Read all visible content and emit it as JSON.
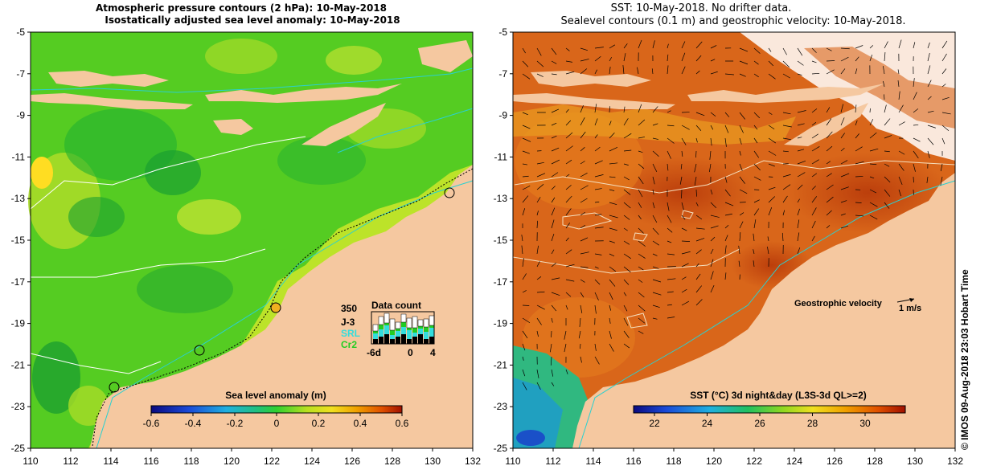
{
  "left_panel": {
    "title_line1": "Atmospheric pressure contours (2 hPa): 10-May-2018",
    "title_line2": "Isostatically adjusted sea level anomaly: 10-May-2018",
    "colorbar_title": "Sea level anomaly (m)",
    "colorbar_ticks": [
      "-0.6",
      "-0.4",
      "-0.2",
      "0",
      "0.2",
      "0.4",
      "0.6"
    ],
    "colors": {
      "ocean": "#55cc22",
      "land": "#f5c8a0",
      "contour": "#ffffff",
      "coastline_stroke": "#2ad0d0"
    },
    "inset": {
      "title": "Data count",
      "max_label": "350",
      "missions": [
        {
          "label": "J-3",
          "color": "#000000"
        },
        {
          "label": "SRL",
          "color": "#33dddd"
        },
        {
          "label": "Cr2",
          "color": "#22cc22"
        }
      ],
      "x_ticks": [
        "-6d",
        "0",
        "4"
      ]
    }
  },
  "right_panel": {
    "title_line1": "SST: 10-May-2018. No drifter data.",
    "title_line2": "Sealevel contours (0.1 m) and geostrophic velocity: 10-May-2018.",
    "colorbar_title": "SST (°C) 3d night&day (L3S-3d QL>=2)",
    "colorbar_ticks": [
      "22",
      "24",
      "26",
      "28",
      "30"
    ],
    "velocity_legend_label": "Geostrophic velocity",
    "velocity_legend_scale": "1 m/s",
    "colors": {
      "ocean": "#d9661a",
      "land": "#f5c8a0"
    }
  },
  "axes": {
    "y_ticks": [
      "-5",
      "-7",
      "-9",
      "-11",
      "-13",
      "-15",
      "-17",
      "-19",
      "-21",
      "-23",
      "-25"
    ],
    "x_ticks": [
      "110",
      "112",
      "114",
      "116",
      "118",
      "120",
      "122",
      "124",
      "126",
      "128",
      "130",
      "132"
    ]
  },
  "credit": "© IMOS 09-Aug-2018 23:03 Hobart Time"
}
